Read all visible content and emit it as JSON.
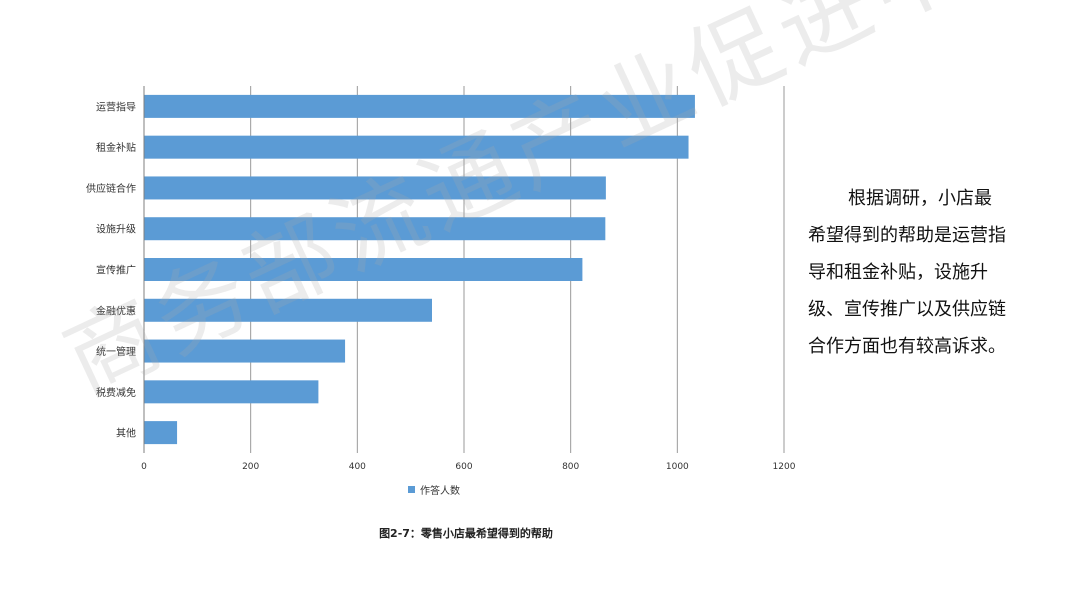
{
  "chart_data": {
    "type": "bar",
    "orientation": "horizontal",
    "categories": [
      "运营指导",
      "租金补贴",
      "供应链合作",
      "设施升级",
      "宣传推广",
      "金融优惠",
      "统一管理",
      "税费减免",
      "其他"
    ],
    "series": [
      {
        "name": "作答人数",
        "values": [
          1033,
          1021,
          866,
          865,
          822,
          540,
          377,
          327,
          62
        ],
        "color": "#5b9bd5"
      }
    ],
    "xlim": [
      0,
      1200
    ],
    "xticks": [
      0,
      200,
      400,
      600,
      800,
      1000,
      1200
    ],
    "grid": "vertical",
    "legend_position": "bottom"
  },
  "caption": "图2-7：零售小店最希望得到的帮助",
  "side_text": "根据调研，小店最希望得到的帮助是运营指导和租金补贴，设施升级、宣传推广以及供应链合作方面也有较高诉求。",
  "watermark": "商务部流通产业促进中心",
  "colors": {
    "bar": "#5b9bd5",
    "grid": "#9a9a9a",
    "axis": "#7f7f7f"
  }
}
